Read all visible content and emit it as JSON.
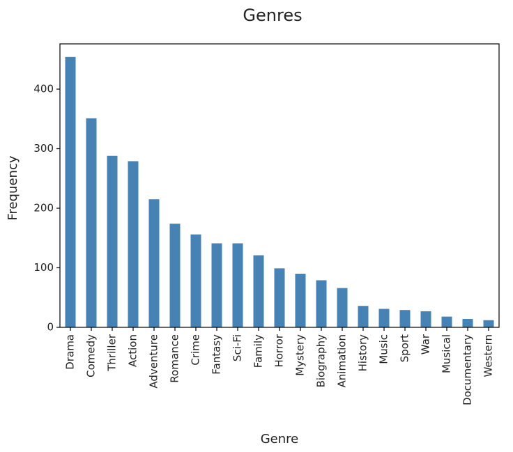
{
  "chart_data": {
    "type": "bar",
    "title": "Genres",
    "xlabel": "Genre",
    "ylabel": "Frequency",
    "categories": [
      "Drama",
      "Comedy",
      "Thriller",
      "Action",
      "Adventure",
      "Romance",
      "Crime",
      "Fantasy",
      "Sci-Fi",
      "Family",
      "Horror",
      "Mystery",
      "Biography",
      "Animation",
      "History",
      "Music",
      "Sport",
      "War",
      "Musical",
      "Documentary",
      "Western"
    ],
    "values": [
      454,
      351,
      288,
      279,
      215,
      174,
      156,
      141,
      141,
      121,
      99,
      90,
      79,
      66,
      36,
      31,
      29,
      27,
      18,
      14,
      12
    ],
    "ylim": [
      0,
      476
    ],
    "yticks": [
      0,
      100,
      200,
      300,
      400
    ],
    "ytick_labels": [
      "0",
      "100",
      "200",
      "300",
      "400"
    ],
    "grid": false,
    "bar_color": "#4682b4",
    "legend": "none"
  }
}
